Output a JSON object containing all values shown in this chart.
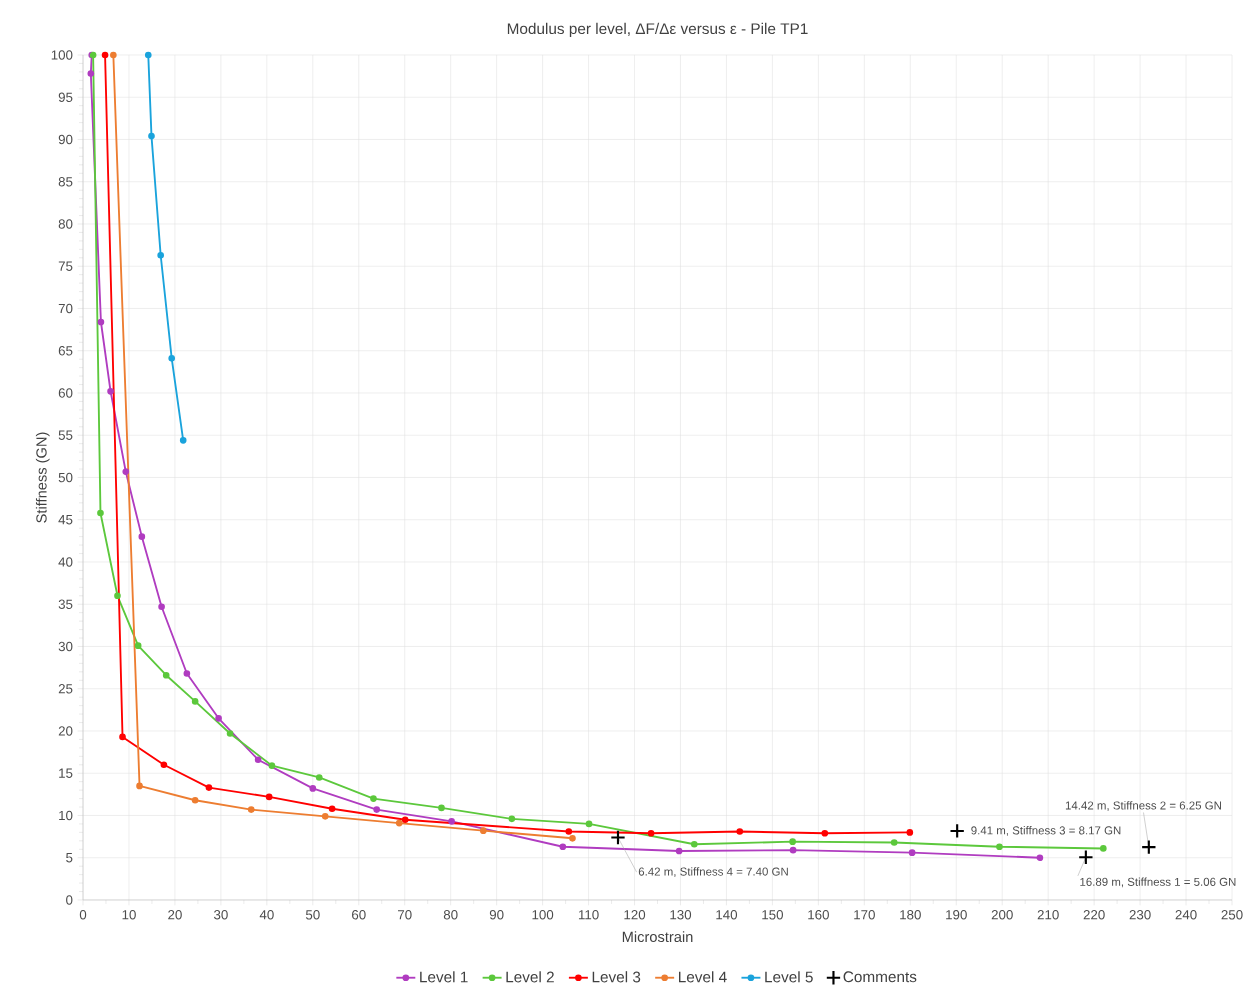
{
  "chart_data": {
    "type": "line",
    "title": "Modulus per level, ΔF/Δε versus ε - Pile TP1",
    "xlabel": "Microstrain",
    "ylabel": "Stiffness (GN)",
    "xlim": [
      0,
      250
    ],
    "ylim": [
      0,
      100
    ],
    "xticks": [
      0,
      10,
      20,
      30,
      40,
      50,
      60,
      70,
      80,
      90,
      100,
      110,
      120,
      130,
      140,
      150,
      160,
      170,
      180,
      190,
      200,
      210,
      220,
      230,
      240,
      250
    ],
    "yticks": [
      0,
      5,
      10,
      15,
      20,
      25,
      30,
      35,
      40,
      45,
      50,
      55,
      60,
      65,
      70,
      75,
      80,
      85,
      90,
      95,
      100
    ],
    "grid": true,
    "legend": "bottom",
    "marker": "circle",
    "line_style": "solid",
    "series": [
      {
        "name": "Level 1",
        "color": "#b03cc0",
        "x": [
          1.9,
          1.7,
          3.9,
          6.0,
          9.3,
          12.8,
          17.1,
          22.6,
          29.5,
          38.1,
          50.0,
          63.9,
          80.2,
          104.4,
          129.7,
          154.5,
          180.4,
          208.2
        ],
        "values": [
          100,
          97.8,
          68.4,
          60.2,
          50.7,
          43.0,
          34.7,
          26.8,
          21.5,
          16.6,
          13.2,
          10.7,
          9.3,
          6.3,
          5.8,
          5.9,
          5.6,
          5.0
        ]
      },
      {
        "name": "Level 2",
        "color": "#5cc83c",
        "x": [
          2.2,
          3.8,
          7.5,
          12.0,
          18.1,
          24.4,
          32.0,
          41.1,
          51.4,
          63.2,
          78.0,
          93.3,
          110.1,
          133.0,
          154.4,
          176.5,
          199.4,
          222.0
        ],
        "values": [
          100,
          45.8,
          36.0,
          30.1,
          26.6,
          23.5,
          19.7,
          15.9,
          14.5,
          12.0,
          10.9,
          9.6,
          9.0,
          6.6,
          6.9,
          6.8,
          6.3,
          6.1
        ]
      },
      {
        "name": "Level 3",
        "color": "#ff0000",
        "x": [
          4.8,
          8.6,
          17.6,
          27.4,
          40.5,
          54.2,
          70.1,
          105.7,
          123.6,
          142.9,
          161.4,
          179.9
        ],
        "values": [
          100,
          19.3,
          16.0,
          13.3,
          12.2,
          10.8,
          9.5,
          8.1,
          7.9,
          8.1,
          7.9,
          8.0
        ]
      },
      {
        "name": "Level 4",
        "color": "#ed7d31",
        "x": [
          6.6,
          12.3,
          24.4,
          36.6,
          52.7,
          68.8,
          87.1,
          106.5
        ],
        "values": [
          100,
          13.5,
          11.8,
          10.7,
          9.9,
          9.1,
          8.2,
          7.3
        ]
      },
      {
        "name": "Level 5",
        "color": "#1aa3dc",
        "x": [
          14.2,
          14.9,
          16.9,
          19.3,
          21.8
        ],
        "values": [
          100,
          90.4,
          76.3,
          64.1,
          54.4
        ]
      },
      {
        "name": "Comments",
        "type": "scatter",
        "marker": "cross",
        "color": "#000000",
        "x": [
          116.4,
          190.2,
          231.9,
          218.2
        ],
        "values": [
          7.4,
          8.17,
          6.25,
          5.06
        ]
      }
    ],
    "annotations": [
      {
        "text": "6.42 m, Stiffness 4 = 7.40 GN",
        "x": 116.4,
        "y": 7.4
      },
      {
        "text": "9.41 m, Stiffness 3 = 8.17 GN",
        "x": 190.2,
        "y": 8.17
      },
      {
        "text": "14.42 m, Stiffness 2 = 6.25 GN",
        "x": 231.9,
        "y": 6.25
      },
      {
        "text": "16.89 m, Stiffness 1 = 5.06 GN",
        "x": 218.2,
        "y": 5.06
      }
    ]
  }
}
